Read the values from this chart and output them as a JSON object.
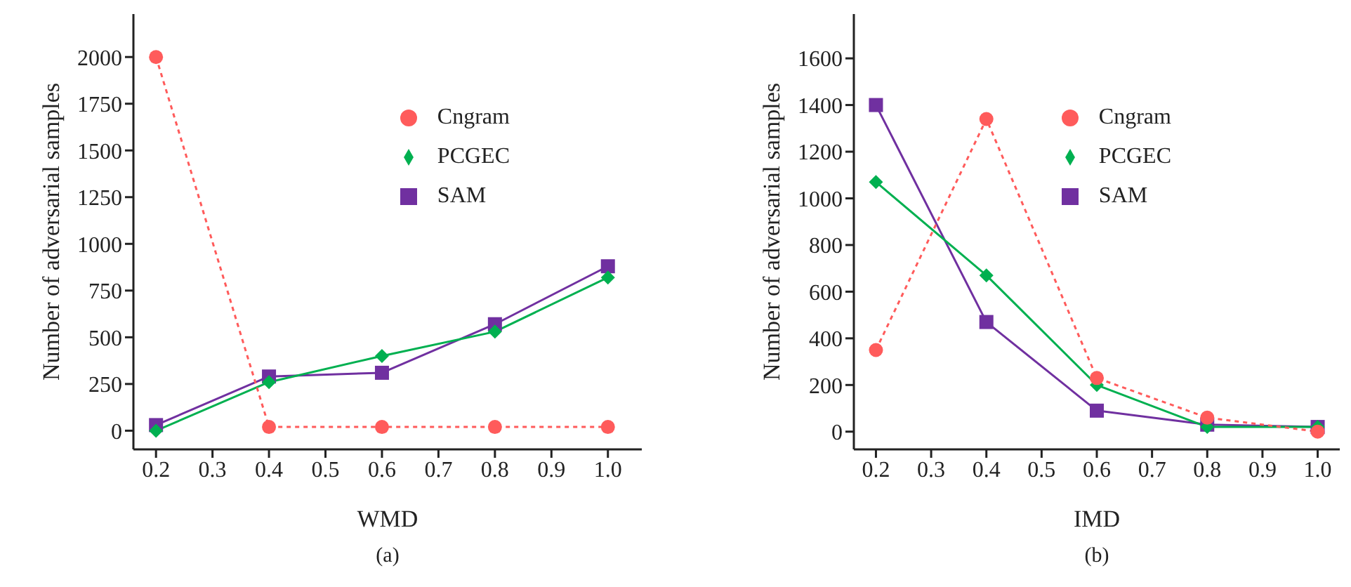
{
  "chart_data": [
    {
      "type": "line",
      "xlabel": "WMD",
      "ylabel": "Number of adversarial samples",
      "annotations": [
        "(a)"
      ],
      "x": [
        0.2,
        0.4,
        0.6,
        0.8,
        1.0
      ],
      "series": [
        {
          "name": "SAM",
          "color": "#7030a0",
          "values": [
            30,
            290,
            310,
            570,
            880
          ],
          "marker": "square",
          "line_style": "solid"
        },
        {
          "name": "PCGEC",
          "color": "#00b050",
          "values": [
            0,
            260,
            400,
            530,
            820
          ],
          "marker": "diamond",
          "line_style": "solid"
        },
        {
          "name": "Cngram",
          "color": "#ff5b5b",
          "values": [
            2000,
            20,
            20,
            20,
            20
          ],
          "marker": "circle",
          "line_style": "dashed"
        }
      ],
      "xlim": [
        0.16,
        1.06
      ],
      "xticks": [
        0.2,
        0.3,
        0.4,
        0.5,
        0.6,
        0.7,
        0.8,
        0.9,
        {
          "value": 1.0,
          "label": "1.0"
        }
      ],
      "ylim": [
        -100,
        2230
      ],
      "yticks": [
        0,
        250,
        500,
        750,
        1000,
        1250,
        1500,
        1750,
        2000
      ],
      "grid": false,
      "legend": "top right"
    },
    {
      "type": "line",
      "xlabel": "IMD",
      "ylabel": "Number of adversarial samples",
      "annotations": [
        "(b)"
      ],
      "x": [
        0.2,
        0.4,
        0.6,
        0.8,
        1.0
      ],
      "series": [
        {
          "name": "SAM",
          "color": "#7030a0",
          "values": [
            1400,
            470,
            90,
            30,
            20
          ],
          "marker": "square",
          "line_style": "solid"
        },
        {
          "name": "PCGEC",
          "color": "#00b050",
          "values": [
            1070,
            670,
            200,
            20,
            20
          ],
          "marker": "diamond",
          "line_style": "solid"
        },
        {
          "name": "Cngram",
          "color": "#ff5b5b",
          "values": [
            350,
            1340,
            230,
            60,
            0
          ],
          "marker": "circle",
          "line_style": "dashed"
        }
      ],
      "xlim": [
        0.16,
        1.04
      ],
      "xticks": [
        0.2,
        0.3,
        0.4,
        0.5,
        0.6,
        0.7,
        0.8,
        0.9,
        {
          "value": 1.0,
          "label": "1.0"
        }
      ],
      "ylim": [
        -76,
        1790
      ],
      "yticks": [
        0,
        200,
        400,
        600,
        800,
        1000,
        1200,
        1400,
        1600
      ],
      "grid": false,
      "legend": "top right"
    }
  ]
}
